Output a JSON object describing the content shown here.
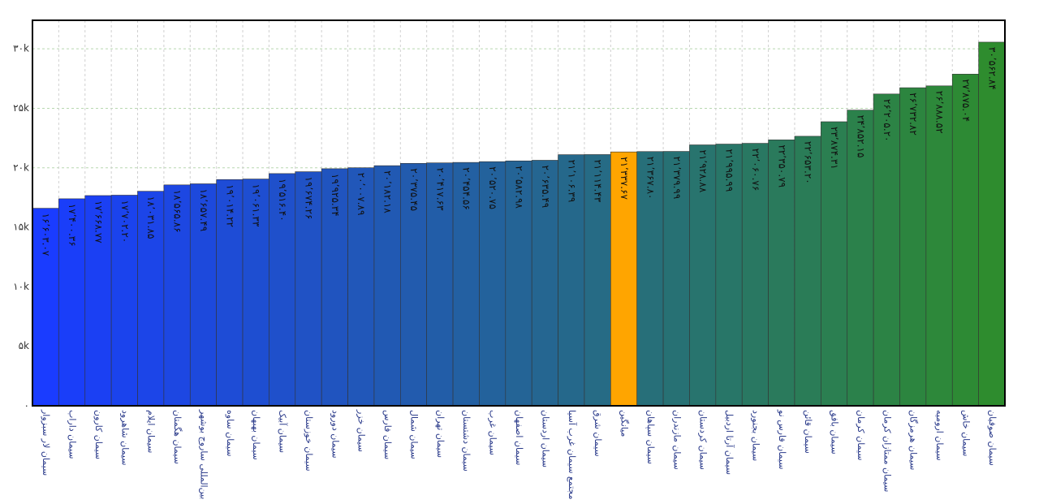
{
  "chart_data": {
    "type": "bar",
    "categories": [
      "سیمان لار سبزوار",
      "سیمان داراب",
      "سیمان کارون",
      "سیمان شاهرود",
      "سیمان ایلام",
      "سیمان هگمتان",
      "بین‌المللی ساروج بوشهر",
      "سیمان ساوه",
      "سیمان بهبهان",
      "سیمان آبیک",
      "سیمان خوزستان",
      "سیمان دورود",
      "سیمان خزر",
      "سیمان فارس",
      "سیمان شمال",
      "سیمان تهران",
      "سیمان دشتستان",
      "سیمان غرب",
      "سیمان اصفهان",
      "سیمان اردستان",
      "مجتمع سیمان غرب آسیا",
      "سیمان شرق",
      "میانگین",
      "سیمان سپاهان",
      "سیمان مازندران",
      "سیمان کردستان",
      "سیمان آرتا اردبیل",
      "سیمان بجنورد",
      "سیمان فارس نو",
      "سیمان قائن",
      "سیمان بافق",
      "سیمان کرمان",
      "سیمان ممتازان کرمان",
      "سیمان هرمزگان",
      "سیمان ارومیه",
      "سیمان خاش",
      "سیمان صوفیان"
    ],
    "values": [
      16603.07,
      17400.36,
      17668.77,
      17702.2,
      18031.85,
      18565.86,
      18657.49,
      19014.22,
      19061.33,
      19516.4,
      19674.26,
      19925.34,
      20007.89,
      20182.18,
      20375.45,
      20417.63,
      20454.56,
      20520.75,
      20582.98,
      20635.49,
      21106.39,
      21114.43,
      21337.67,
      21367.8,
      21379.99,
      21928.88,
      21995.99,
      22060.76,
      22350.79,
      22653.2,
      23874.31,
      24852.15,
      26205.2,
      26732.82,
      26888.52,
      27875.04,
      30562.84
    ],
    "value_labels": [
      "۱۶٬۶۰۳.۰۷",
      "۱۷٬۴۰۰.۳۶",
      "۱۷٬۶۶۸.۷۷",
      "۱۷٬۷۰۲.۲۰",
      "۱۸٬۰۳۱.۸۵",
      "۱۸٬۵۶۵.۸۶",
      "۱۸٬۶۵۷.۴۹",
      "۱۹٬۰۱۴.۲۲",
      "۱۹٬۰۶۱.۳۳",
      "۱۹٬۵۱۶.۴۰",
      "۱۹٬۶۷۴.۲۶",
      "۱۹٬۹۲۵.۳۴",
      "۲۰٬۰۰۷.۸۹",
      "۲۰٬۱۸۲.۱۸",
      "۲۰٬۳۷۵.۴۵",
      "۲۰٬۴۱۷.۶۳",
      "۲۰٬۴۵۴.۵۶",
      "۲۰٬۵۲۰.۷۵",
      "۲۰٬۵۸۲.۹۸",
      "۲۰٬۶۳۵.۴۹",
      "۲۱٬۱۰۶.۳۹",
      "۲۱٬۱۱۴.۴۳",
      "۲۱٬۳۳۷.۶۷",
      "۲۱٬۳۶۷.۸۰",
      "۲۱٬۳۷۹.۹۹",
      "۲۱٬۹۲۸.۸۸",
      "۲۱٬۹۹۵.۹۹",
      "۲۲٬۰۶۰.۷۶",
      "۲۲٬۳۵۰.۷۹",
      "۲۲٬۶۵۳.۲۰",
      "۲۳٬۸۷۴.۳۱",
      "۲۴٬۸۵۲.۱۵",
      "۲۶٬۲۰۵.۲۰",
      "۲۶٬۷۳۲.۸۲",
      "۲۶٬۸۸۸.۵۲",
      "۲۷٬۸۷۵.۰۴",
      "۳۰٬۵۶۲.۸۴"
    ],
    "colors": [
      "#1a3cff",
      "#1a3ef9",
      "#1b40f3",
      "#1b43ed",
      "#1c45e8",
      "#1d47e2",
      "#1d49dc",
      "#1e4cd6",
      "#1e4ed1",
      "#1f50cb",
      "#2052c5",
      "#2054bf",
      "#2157b9",
      "#2159b3",
      "#225bae",
      "#225da8",
      "#2360a2",
      "#23629c",
      "#246496",
      "#256691",
      "#25688b",
      "#266b85",
      "#ffa500",
      "#276f79",
      "#277174",
      "#28746e",
      "#287668",
      "#297862",
      "#2a7a5c",
      "#2a7c57",
      "#2b7f51",
      "#2b814b",
      "#2c8345",
      "#2c853f",
      "#2d883a",
      "#2d8a34",
      "#2e8c2e"
    ],
    "ylim": [
      0,
      32400
    ],
    "yticks": [
      {
        "value": 0,
        "label": "۰"
      },
      {
        "value": 5000,
        "label": "۵k"
      },
      {
        "value": 10000,
        "label": "۱۰k"
      },
      {
        "value": 15000,
        "label": "۱۵k"
      },
      {
        "value": 20000,
        "label": "۲۰k"
      },
      {
        "value": 25000,
        "label": "۲۵k"
      },
      {
        "value": 30000,
        "label": "۳۰k"
      }
    ],
    "grid": true
  }
}
